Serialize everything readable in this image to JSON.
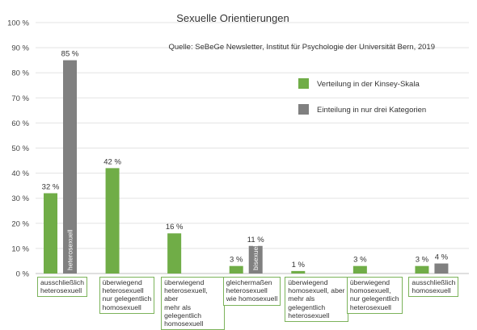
{
  "chart_data": {
    "type": "bar",
    "title": "Sexuelle Orientierungen",
    "source": "Quelle: SeBeGe Newsletter, Institut für Psychologie der Universität Bern, 2019",
    "ylim": [
      0,
      100
    ],
    "yticks": [
      0,
      10,
      20,
      30,
      40,
      50,
      60,
      70,
      80,
      90,
      100
    ],
    "ytick_labels": [
      "0 %",
      "10 %",
      "20 %",
      "30 %",
      "40 %",
      "50 %",
      "60 %",
      "70 %",
      "80 %",
      "90 %",
      "100 %"
    ],
    "grid": true,
    "legend_position": "right",
    "categories": [
      "ausschließlich\nheterosexuell",
      "überwiegend\nheterosexuell\nnur gelegentlich\nhomosexuell",
      "überwiegend\nheterosexuell, aber\nmehr als gelegentlich\nhomosexuell",
      "gleichermaßen\nheterosexuell\nwie homosexuell",
      "überwiegend\nhomosexuell, aber\nmehr als gelegentlich\nheterosexuell",
      "überwiegend\nhomosexuell,\nnur gelegentlich\nheterosexuell",
      "ausschließlich\nhomosexuell"
    ],
    "series": [
      {
        "name": "Verteilung in der Kinsey-Skala",
        "color": "#70ad47",
        "values": [
          32,
          42,
          16,
          3,
          1,
          3,
          3
        ],
        "labels": [
          "32 %",
          "42 %",
          "16 %",
          "3 %",
          "1 %",
          "3 %",
          "3 %"
        ]
      },
      {
        "name": "Einteilung in nur drei Kategorien",
        "color": "#808080",
        "values": [
          85,
          null,
          null,
          11,
          null,
          null,
          4
        ],
        "labels": [
          "85 %",
          null,
          null,
          "11 %",
          null,
          null,
          "4 %"
        ],
        "inner_labels": [
          "heterosexuell",
          null,
          null,
          "bisexuell",
          null,
          null,
          null
        ]
      }
    ]
  }
}
